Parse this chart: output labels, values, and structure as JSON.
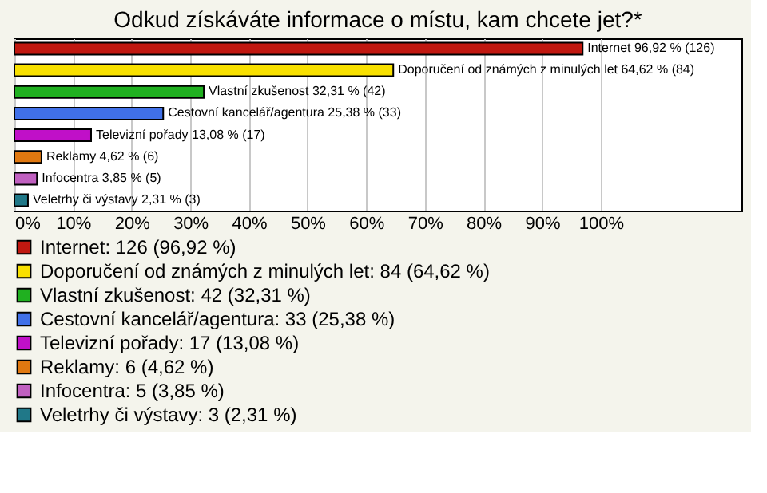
{
  "chart_data": {
    "type": "bar",
    "orientation": "horizontal",
    "title": "Odkud získáváte informace o místu, kam chcete jet?*",
    "categories": [
      null,
      null,
      null,
      null,
      null,
      null,
      null,
      null
    ],
    "xlim": [
      0,
      124
    ],
    "xticks": [
      {
        "value": 0,
        "label": "0%"
      },
      {
        "value": 10,
        "label": "10%"
      },
      {
        "value": 20,
        "label": "20%"
      },
      {
        "value": 30,
        "label": "30%"
      },
      {
        "value": 40,
        "label": "40%"
      },
      {
        "value": 50,
        "label": "50%"
      },
      {
        "value": 60,
        "label": "60%"
      },
      {
        "value": 70,
        "label": "70%"
      },
      {
        "value": 80,
        "label": "80%"
      },
      {
        "value": 90,
        "label": "90%"
      },
      {
        "value": 100,
        "label": "100%"
      }
    ],
    "grid": "x",
    "legend": "bottom",
    "tick_labels": "x",
    "series": [
      {
        "name": "Internet: 126 (96,92 %)",
        "color": "#c01810",
        "values": [
          96.92,
          null,
          null,
          null,
          null,
          null,
          null,
          null
        ],
        "value_labels": [
          "Internet 96,92 % (126)",
          null,
          null,
          null,
          null,
          null,
          null,
          null
        ]
      },
      {
        "name": "Doporučení od známých z minulých let: 84 (64,62 %)",
        "color": "#f8e000",
        "values": [
          null,
          64.62,
          null,
          null,
          null,
          null,
          null,
          null
        ],
        "value_labels": [
          null,
          "Doporučení od známých z minulých let 64,62 % (84)",
          null,
          null,
          null,
          null,
          null,
          null
        ]
      },
      {
        "name": "Vlastní zkušenost: 42 (32,31 %)",
        "color": "#20b020",
        "values": [
          null,
          null,
          32.31,
          null,
          null,
          null,
          null,
          null
        ],
        "value_labels": [
          null,
          null,
          "Vlastní zkušenost 32,31 % (42)",
          null,
          null,
          null,
          null,
          null
        ]
      },
      {
        "name": "Cestovní kancelář/agentura: 33 (25,38 %)",
        "color": "#4070e8",
        "values": [
          null,
          null,
          null,
          25.38,
          null,
          null,
          null,
          null
        ],
        "value_labels": [
          null,
          null,
          null,
          "Cestovní kancelář/agentura 25,38 % (33)",
          null,
          null,
          null,
          null
        ]
      },
      {
        "name": "Televizní pořady: 17 (13,08 %)",
        "color": "#c010c8",
        "values": [
          null,
          null,
          null,
          null,
          13.08,
          null,
          null,
          null
        ],
        "value_labels": [
          null,
          null,
          null,
          null,
          "Televizní pořady 13,08 % (17)",
          null,
          null,
          null
        ]
      },
      {
        "name": "Reklamy: 6 (4,62 %)",
        "color": "#e07810",
        "values": [
          null,
          null,
          null,
          null,
          null,
          4.62,
          null,
          null
        ],
        "value_labels": [
          null,
          null,
          null,
          null,
          null,
          "Reklamy 4,62 % (6)",
          null,
          null
        ]
      },
      {
        "name": "Infocentra: 5 (3,85 %)",
        "color": "#c060c0",
        "values": [
          null,
          null,
          null,
          null,
          null,
          null,
          3.85,
          null
        ],
        "value_labels": [
          null,
          null,
          null,
          null,
          null,
          null,
          "Infocentra 3,85 % (5)",
          null
        ]
      },
      {
        "name": "Veletrhy či výstavy: 3 (2,31 %)",
        "color": "#207888",
        "values": [
          null,
          null,
          null,
          null,
          null,
          null,
          null,
          2.31
        ],
        "value_labels": [
          null,
          null,
          null,
          null,
          null,
          null,
          null,
          "Veletrhy či výstavy 2,31 % (3)"
        ]
      }
    ]
  }
}
